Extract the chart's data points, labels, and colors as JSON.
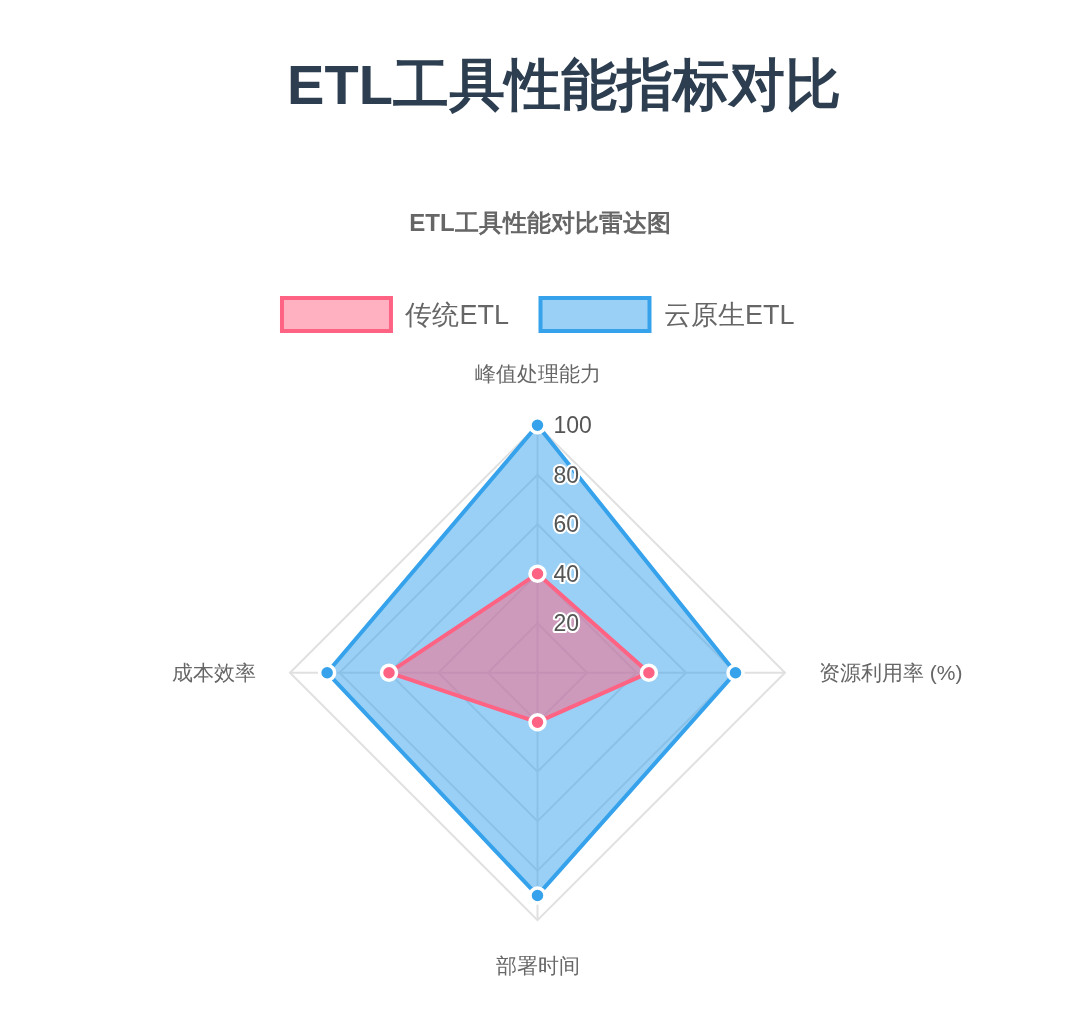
{
  "chart_data": {
    "type": "radar",
    "title": "ETL工具性能指标对比",
    "subtitle": "ETL工具性能对比雷达图",
    "categories": [
      "峰值处理能力",
      "资源利用率 (%)",
      "部署时间",
      "成本效率"
    ],
    "series": [
      {
        "name": "传统ETL",
        "color": "#ff6384",
        "values": [
          40,
          45,
          20,
          60
        ]
      },
      {
        "name": "云原生ETL",
        "color": "#36a2eb",
        "values": [
          100,
          80,
          90,
          85
        ]
      }
    ],
    "ylim": [
      0,
      100
    ],
    "yticks": [
      20,
      40,
      60,
      80,
      100
    ],
    "grid": true,
    "legend": "top",
    "marker": "circle"
  }
}
